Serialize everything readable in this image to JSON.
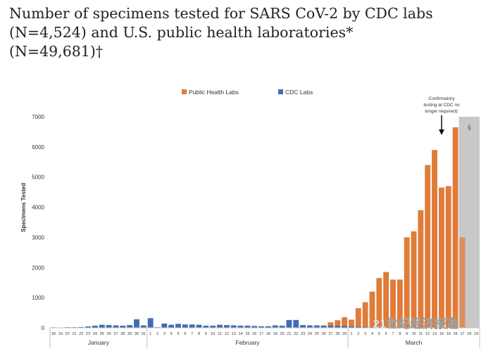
{
  "title_lines": [
    "Number of specimens tested for SARS CoV-2 by CDC labs",
    "(N=4,524) and U.S. public health laboratories*",
    "(N=49,681)†"
  ],
  "annotation": {
    "lines": [
      "Confirmatory",
      "testing at CDC no",
      "longer required‡"
    ]
  },
  "shaded_label": "§",
  "watermark": "21世纪经济报道",
  "colors": {
    "phl": "#e07b39",
    "cdc": "#3f6db4",
    "shade": "#c8c8c8",
    "axis": "#bfbfbf",
    "text": "#333333"
  },
  "chart_data": {
    "type": "bar",
    "ylabel": "Specimens Tested",
    "ylim": [
      0,
      7000
    ],
    "yticks": [
      0,
      1000,
      2000,
      3000,
      4000,
      5000,
      6000,
      7000
    ],
    "legend": {
      "placement": "top-center",
      "entries": [
        "Public Health Labs",
        "CDC Labs"
      ]
    },
    "days": [
      "18",
      "19",
      "20",
      "21",
      "22",
      "23",
      "24",
      "25",
      "26",
      "27",
      "28",
      "29",
      "30",
      "31",
      "1",
      "2",
      "3",
      "4",
      "5",
      "6",
      "7",
      "8",
      "9",
      "10",
      "11",
      "12",
      "13",
      "14",
      "15",
      "16",
      "17",
      "18",
      "19",
      "20",
      "21",
      "22",
      "23",
      "24",
      "25",
      "26",
      "27",
      "28",
      "29",
      "1",
      "2",
      "3",
      "4",
      "5",
      "6",
      "7",
      "8",
      "9",
      "10",
      "11",
      "12",
      "13",
      "14",
      "15",
      "16",
      "17",
      "18",
      "19"
    ],
    "months": [
      {
        "name": "January",
        "start": 0,
        "end": 13
      },
      {
        "name": "February",
        "start": 14,
        "end": 42
      },
      {
        "name": "March",
        "start": 43,
        "end": 61
      }
    ],
    "shaded_from": 59,
    "series": [
      {
        "name": "Public Health Labs",
        "key": "phl",
        "values": [
          0,
          0,
          0,
          0,
          0,
          0,
          0,
          0,
          0,
          0,
          0,
          0,
          0,
          0,
          0,
          0,
          0,
          0,
          0,
          0,
          0,
          0,
          0,
          0,
          0,
          0,
          0,
          0,
          0,
          0,
          0,
          0,
          0,
          0,
          0,
          0,
          0,
          0,
          30,
          80,
          180,
          250,
          350,
          270,
          650,
          850,
          1200,
          1650,
          1850,
          1600,
          1600,
          3000,
          3200,
          3900,
          5400,
          5900,
          4650,
          4700,
          6650,
          3000,
          0,
          0
        ]
      },
      {
        "name": "CDC Labs",
        "key": "cdc",
        "values": [
          15,
          10,
          20,
          20,
          25,
          45,
          70,
          100,
          90,
          80,
          70,
          90,
          280,
          80,
          320,
          20,
          140,
          100,
          130,
          110,
          110,
          100,
          70,
          70,
          100,
          90,
          80,
          70,
          70,
          60,
          50,
          50,
          80,
          70,
          260,
          260,
          90,
          80,
          80,
          70,
          70,
          70,
          60,
          40,
          30,
          30,
          20,
          20,
          20,
          15,
          15,
          10,
          10,
          10,
          10,
          10,
          10,
          5,
          5,
          5,
          0,
          0
        ]
      }
    ]
  }
}
